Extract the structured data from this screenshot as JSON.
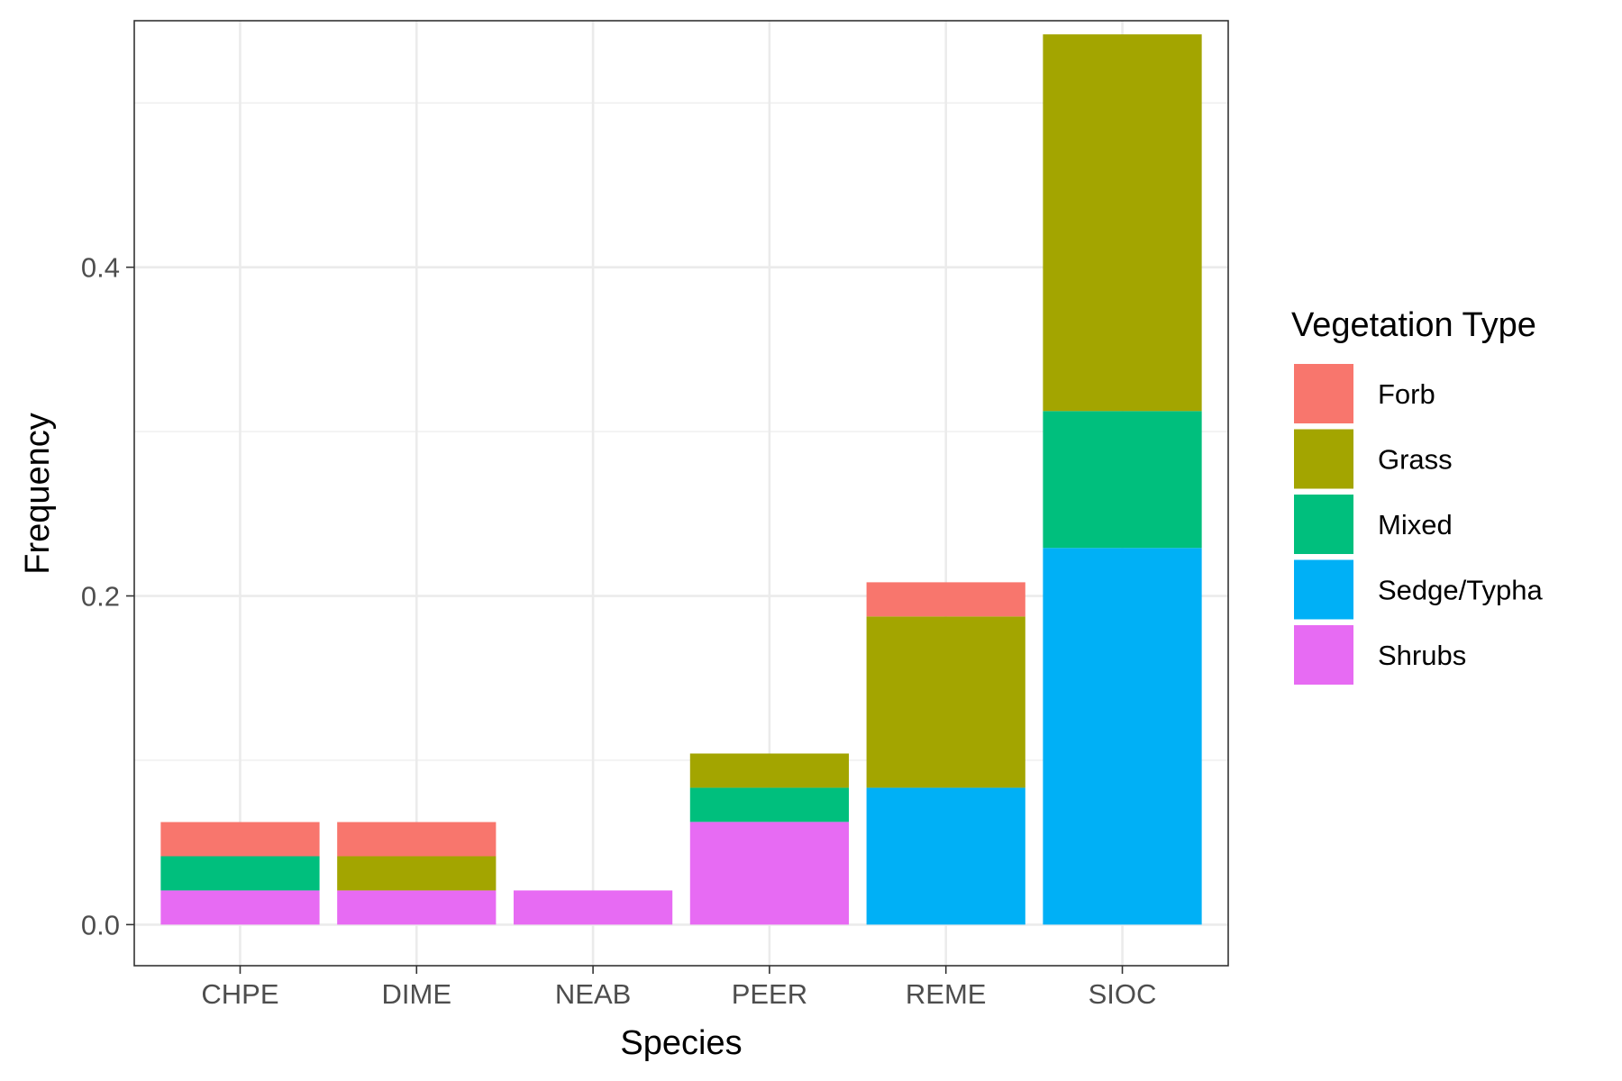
{
  "chart_data": {
    "type": "bar",
    "stacked": true,
    "title": "",
    "xlabel": "Species",
    "ylabel": "Frequency",
    "categories": [
      "CHPE",
      "DIME",
      "NEAB",
      "PEER",
      "REME",
      "SIOC"
    ],
    "ylim": [
      -0.025,
      0.55
    ],
    "yticks": [
      0.0,
      0.2,
      0.4
    ],
    "ytick_labels": [
      "0.0",
      "0.2",
      "0.4"
    ],
    "grid": true,
    "legend": {
      "title": "Vegetation Type",
      "position": "right"
    },
    "stack_order_bottom_to_top": [
      "Shrubs",
      "Sedge/Typha",
      "Mixed",
      "Grass",
      "Forb"
    ],
    "series": [
      {
        "name": "Forb",
        "color": "#F8766D",
        "values": [
          0.0208,
          0.0208,
          0,
          0,
          0.0208,
          0
        ]
      },
      {
        "name": "Grass",
        "color": "#A3A500",
        "values": [
          0,
          0.0208,
          0,
          0.0208,
          0.1042,
          0.2292
        ]
      },
      {
        "name": "Mixed",
        "color": "#00BF7D",
        "values": [
          0.0208,
          0,
          0,
          0.0208,
          0,
          0.0833
        ]
      },
      {
        "name": "Sedge/Typha",
        "color": "#00B0F6",
        "values": [
          0,
          0,
          0,
          0,
          0.0833,
          0.2292
        ]
      },
      {
        "name": "Shrubs",
        "color": "#E76BF3",
        "values": [
          0.0208,
          0.0208,
          0.0208,
          0.0625,
          0,
          0
        ]
      }
    ]
  }
}
